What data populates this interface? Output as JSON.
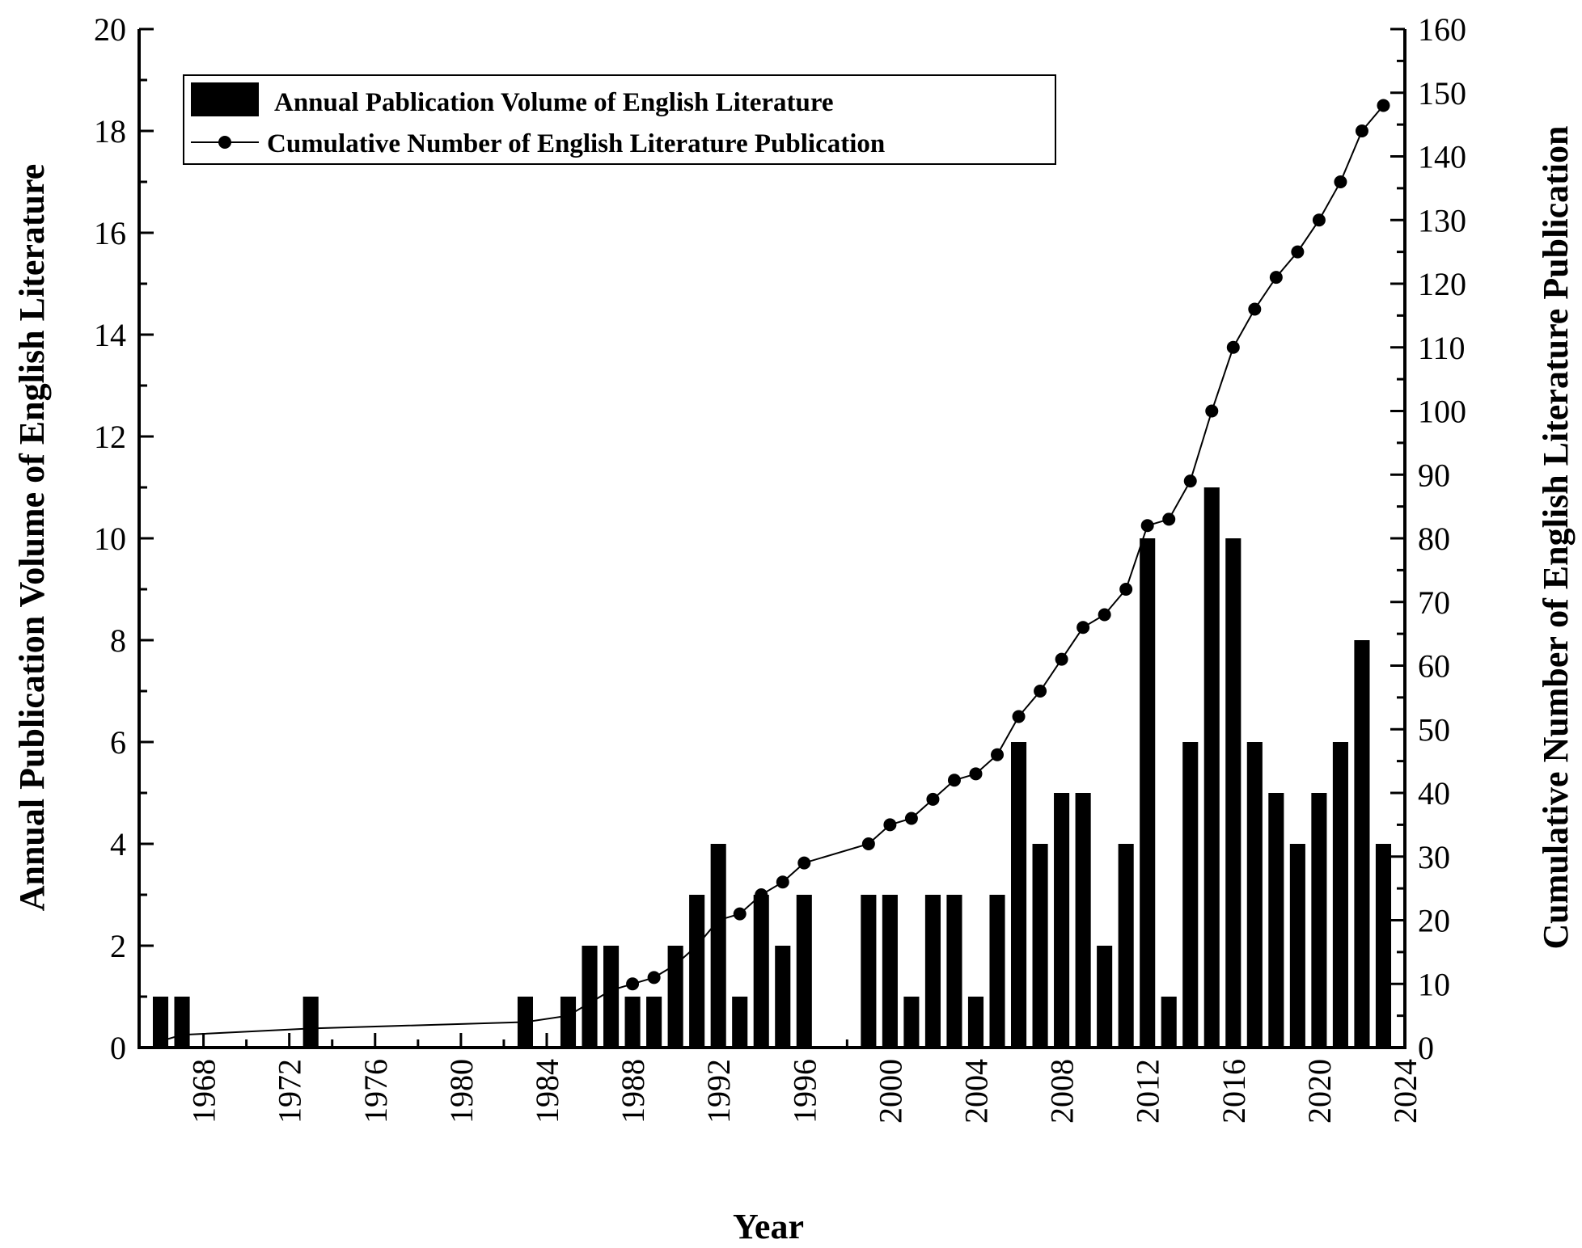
{
  "chart_data": {
    "type": "bar+line",
    "xlabel": "Year",
    "ylabel_left": "Annual Publication Volume of English Literature",
    "ylabel_right": "Cumulative Number of English Literature Publication",
    "xlim": [
      1965,
      2024
    ],
    "ylim_left": [
      0,
      20
    ],
    "ylim_right": [
      0,
      160
    ],
    "x_tick_labels": [
      "1968",
      "1972",
      "1976",
      "1980",
      "1984",
      "1988",
      "1992",
      "1996",
      "2000",
      "2004",
      "2008",
      "2012",
      "2016",
      "2020",
      "2024"
    ],
    "y_left_tick_labels": [
      "0",
      "2",
      "4",
      "6",
      "8",
      "10",
      "12",
      "14",
      "16",
      "18",
      "20"
    ],
    "y_right_tick_labels": [
      "0",
      "10",
      "20",
      "30",
      "40",
      "50",
      "60",
      "70",
      "80",
      "90",
      "100",
      "110",
      "120",
      "130",
      "140",
      "150",
      "160"
    ],
    "legend_position": "top-left",
    "colors": {
      "bars": "#000000",
      "line": "#000000"
    },
    "series": [
      {
        "name": "Annual Pablication Volume of English Literature",
        "type": "bar",
        "axis": "left",
        "points": [
          [
            1966,
            1
          ],
          [
            1967,
            1
          ],
          [
            1973,
            1
          ],
          [
            1983,
            1
          ],
          [
            1985,
            1
          ],
          [
            1986,
            2
          ],
          [
            1987,
            2
          ],
          [
            1988,
            1
          ],
          [
            1989,
            1
          ],
          [
            1990,
            2
          ],
          [
            1991,
            3
          ],
          [
            1992,
            4
          ],
          [
            1993,
            1
          ],
          [
            1994,
            3
          ],
          [
            1995,
            2
          ],
          [
            1996,
            3
          ],
          [
            1999,
            3
          ],
          [
            2000,
            3
          ],
          [
            2001,
            1
          ],
          [
            2002,
            3
          ],
          [
            2003,
            3
          ],
          [
            2004,
            1
          ],
          [
            2005,
            3
          ],
          [
            2006,
            6
          ],
          [
            2007,
            4
          ],
          [
            2008,
            5
          ],
          [
            2009,
            5
          ],
          [
            2010,
            2
          ],
          [
            2011,
            4
          ],
          [
            2012,
            10
          ],
          [
            2013,
            1
          ],
          [
            2014,
            6
          ],
          [
            2015,
            11
          ],
          [
            2016,
            10
          ],
          [
            2017,
            6
          ],
          [
            2018,
            5
          ],
          [
            2019,
            4
          ],
          [
            2020,
            5
          ],
          [
            2021,
            6
          ],
          [
            2022,
            8
          ],
          [
            2023,
            4
          ]
        ]
      },
      {
        "name": "Cumulative Number of English Literature Publication",
        "type": "line",
        "axis": "right",
        "points": [
          [
            1966,
            1
          ],
          [
            1967,
            2
          ],
          [
            1973,
            3
          ],
          [
            1983,
            4
          ],
          [
            1985,
            5
          ],
          [
            1986,
            7
          ],
          [
            1987,
            9
          ],
          [
            1988,
            10
          ],
          [
            1989,
            11
          ],
          [
            1990,
            13
          ],
          [
            1991,
            16
          ],
          [
            1992,
            20
          ],
          [
            1993,
            21
          ],
          [
            1994,
            24
          ],
          [
            1995,
            26
          ],
          [
            1996,
            29
          ],
          [
            1999,
            32
          ],
          [
            2000,
            35
          ],
          [
            2001,
            36
          ],
          [
            2002,
            39
          ],
          [
            2003,
            42
          ],
          [
            2004,
            43
          ],
          [
            2005,
            46
          ],
          [
            2006,
            52
          ],
          [
            2007,
            56
          ],
          [
            2008,
            61
          ],
          [
            2009,
            66
          ],
          [
            2010,
            68
          ],
          [
            2011,
            72
          ],
          [
            2012,
            82
          ],
          [
            2013,
            83
          ],
          [
            2014,
            89
          ],
          [
            2015,
            100
          ],
          [
            2016,
            110
          ],
          [
            2017,
            116
          ],
          [
            2018,
            121
          ],
          [
            2019,
            125
          ],
          [
            2020,
            130
          ],
          [
            2021,
            136
          ],
          [
            2022,
            144
          ],
          [
            2023,
            148
          ]
        ]
      }
    ]
  }
}
